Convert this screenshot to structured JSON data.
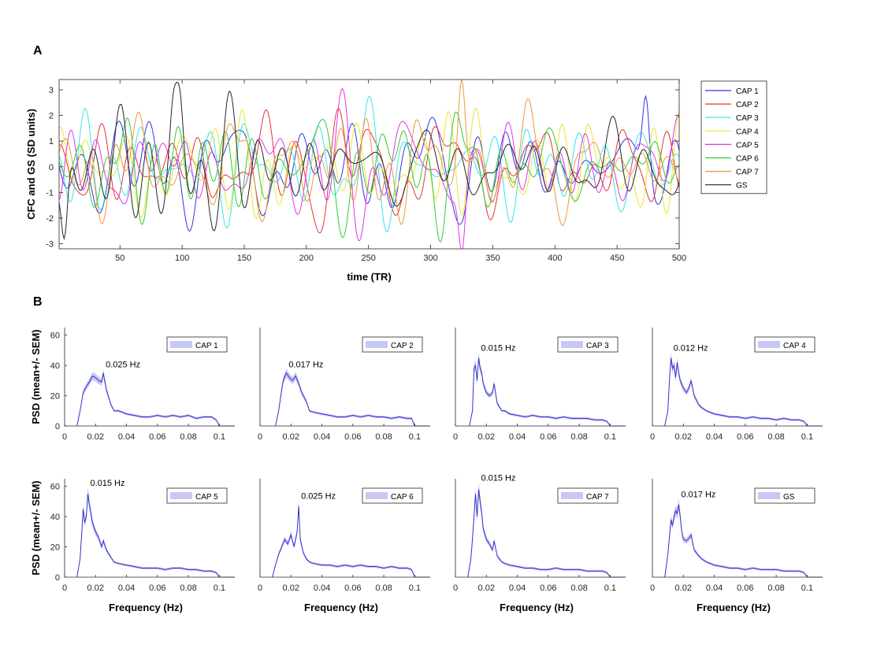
{
  "panel_a_letter": "A",
  "panel_b_letter": "B",
  "chart_data": [
    {
      "type": "line",
      "panel": "A",
      "xlabel": "time (TR)",
      "ylabel": "CFC and GS (SD units)",
      "xlim": [
        1,
        500
      ],
      "ylim": [
        -3.2,
        3.4
      ],
      "xticks": [
        50,
        100,
        150,
        200,
        250,
        300,
        350,
        400,
        450,
        500
      ],
      "yticks": [
        -3,
        -2,
        -1,
        0,
        1,
        2,
        3
      ],
      "series": [
        {
          "name": "CAP 1",
          "color": "#3333e6"
        },
        {
          "name": "CAP 2",
          "color": "#e63333"
        },
        {
          "name": "CAP 3",
          "color": "#33e6e6"
        },
        {
          "name": "CAP 4",
          "color": "#e6e633"
        },
        {
          "name": "CAP 5",
          "color": "#e633e6"
        },
        {
          "name": "CAP 6",
          "color": "#33cc33"
        },
        {
          "name": "CAP 7",
          "color": "#f0963c"
        },
        {
          "name": "GS",
          "color": "#262626"
        }
      ],
      "notable_extremes": [
        {
          "series": "GS",
          "x": 96,
          "y": 3.3
        },
        {
          "series": "CAP 7",
          "x": 325,
          "y": 3.4
        },
        {
          "series": "CAP 5",
          "x": 325,
          "y": -3.3
        },
        {
          "series": "GS",
          "x": 5,
          "y": -2.8
        },
        {
          "series": "CAP 1",
          "x": 473,
          "y": 2.75
        }
      ]
    },
    {
      "type": "area",
      "panel": "B",
      "xlabel": "Frequency (Hz)",
      "ylabel": "PSD (mean+/- SEM)",
      "xlim": [
        0,
        0.11
      ],
      "ylim": [
        0,
        65
      ],
      "xticks": [
        "0",
        "0.02",
        "0.04",
        "0.06",
        "0.08",
        "0.1"
      ],
      "top_yticks": [
        "0",
        "20",
        "40",
        "60"
      ],
      "line_color": "#3333cc",
      "band_color": "#c8c8f5",
      "spectra": [
        {
          "name": "CAP 1",
          "peak_label": "0.025 Hz",
          "peak_freq": 0.025,
          "x": [
            0.008,
            0.01,
            0.012,
            0.014,
            0.016,
            0.018,
            0.02,
            0.022,
            0.024,
            0.025,
            0.027,
            0.03,
            0.032,
            0.035,
            0.04,
            0.045,
            0.05,
            0.055,
            0.06,
            0.065,
            0.07,
            0.075,
            0.08,
            0.085,
            0.09,
            0.095,
            0.098,
            0.1
          ],
          "y": [
            0,
            10,
            22,
            26,
            29,
            33,
            32,
            30,
            29,
            35,
            24,
            14,
            10,
            10,
            8,
            7,
            6,
            6,
            7,
            6,
            7,
            6,
            7,
            5,
            6,
            6,
            4,
            0
          ]
        },
        {
          "name": "CAP 2",
          "peak_label": "0.017 Hz",
          "peak_freq": 0.017,
          "x": [
            0.01,
            0.012,
            0.014,
            0.015,
            0.017,
            0.019,
            0.021,
            0.023,
            0.025,
            0.027,
            0.03,
            0.032,
            0.035,
            0.04,
            0.045,
            0.05,
            0.055,
            0.06,
            0.065,
            0.07,
            0.075,
            0.08,
            0.085,
            0.09,
            0.095,
            0.098,
            0.1
          ],
          "y": [
            0,
            10,
            24,
            30,
            35,
            32,
            30,
            33,
            28,
            22,
            16,
            10,
            9,
            8,
            7,
            6,
            6,
            7,
            6,
            7,
            6,
            6,
            5,
            6,
            5,
            5,
            0
          ]
        },
        {
          "name": "CAP 3",
          "peak_label": "0.015 Hz",
          "peak_freq": 0.015,
          "x": [
            0.009,
            0.011,
            0.012,
            0.013,
            0.014,
            0.015,
            0.016,
            0.017,
            0.018,
            0.02,
            0.022,
            0.024,
            0.025,
            0.027,
            0.03,
            0.032,
            0.035,
            0.04,
            0.045,
            0.05,
            0.055,
            0.06,
            0.065,
            0.07,
            0.075,
            0.08,
            0.085,
            0.09,
            0.095,
            0.098,
            0.1
          ],
          "y": [
            0,
            10,
            38,
            40,
            30,
            45,
            38,
            35,
            28,
            22,
            20,
            22,
            28,
            15,
            10,
            10,
            8,
            7,
            6,
            7,
            6,
            6,
            5,
            6,
            5,
            5,
            5,
            4,
            4,
            3,
            0
          ]
        },
        {
          "name": "CAP 4",
          "peak_label": "0.012 Hz",
          "peak_freq": 0.012,
          "x": [
            0.008,
            0.01,
            0.011,
            0.012,
            0.013,
            0.014,
            0.015,
            0.016,
            0.017,
            0.018,
            0.02,
            0.022,
            0.024,
            0.025,
            0.027,
            0.03,
            0.032,
            0.035,
            0.04,
            0.045,
            0.05,
            0.055,
            0.06,
            0.065,
            0.07,
            0.075,
            0.08,
            0.085,
            0.09,
            0.095,
            0.098,
            0.1
          ],
          "y": [
            0,
            10,
            30,
            45,
            38,
            40,
            32,
            42,
            35,
            30,
            25,
            22,
            26,
            30,
            20,
            14,
            12,
            10,
            8,
            7,
            6,
            6,
            5,
            6,
            5,
            5,
            4,
            5,
            4,
            4,
            3,
            0
          ]
        },
        {
          "name": "CAP 5",
          "peak_label": "0.015 Hz",
          "peak_freq": 0.015,
          "x": [
            0.008,
            0.01,
            0.011,
            0.012,
            0.013,
            0.014,
            0.015,
            0.016,
            0.017,
            0.018,
            0.02,
            0.022,
            0.024,
            0.025,
            0.027,
            0.03,
            0.032,
            0.035,
            0.04,
            0.045,
            0.05,
            0.055,
            0.06,
            0.065,
            0.07,
            0.075,
            0.08,
            0.085,
            0.09,
            0.095,
            0.098,
            0.1
          ],
          "y": [
            0,
            12,
            28,
            45,
            36,
            40,
            55,
            48,
            42,
            36,
            30,
            26,
            20,
            24,
            18,
            13,
            10,
            9,
            8,
            7,
            6,
            6,
            6,
            5,
            6,
            6,
            5,
            5,
            4,
            4,
            3,
            0
          ]
        },
        {
          "name": "CAP 6",
          "peak_label": "0.025 Hz",
          "peak_freq": 0.025,
          "x": [
            0.008,
            0.01,
            0.012,
            0.014,
            0.016,
            0.018,
            0.02,
            0.022,
            0.024,
            0.025,
            0.026,
            0.028,
            0.03,
            0.032,
            0.035,
            0.04,
            0.045,
            0.05,
            0.055,
            0.06,
            0.065,
            0.07,
            0.075,
            0.08,
            0.085,
            0.09,
            0.095,
            0.098,
            0.1
          ],
          "y": [
            0,
            8,
            15,
            20,
            25,
            22,
            28,
            20,
            30,
            47,
            25,
            16,
            12,
            10,
            9,
            8,
            8,
            7,
            8,
            7,
            8,
            7,
            7,
            6,
            7,
            6,
            6,
            5,
            0
          ]
        },
        {
          "name": "CAP 7",
          "peak_label": "0.015 Hz",
          "peak_freq": 0.015,
          "x": [
            0.008,
            0.01,
            0.011,
            0.012,
            0.013,
            0.014,
            0.015,
            0.016,
            0.017,
            0.018,
            0.02,
            0.022,
            0.024,
            0.025,
            0.027,
            0.03,
            0.032,
            0.035,
            0.04,
            0.045,
            0.05,
            0.055,
            0.06,
            0.065,
            0.07,
            0.075,
            0.08,
            0.085,
            0.09,
            0.095,
            0.098,
            0.1
          ],
          "y": [
            0,
            12,
            25,
            40,
            55,
            40,
            58,
            50,
            42,
            32,
            25,
            22,
            18,
            24,
            14,
            10,
            9,
            8,
            7,
            6,
            6,
            5,
            5,
            6,
            5,
            5,
            5,
            4,
            4,
            4,
            3,
            0
          ]
        },
        {
          "name": "GS",
          "peak_label": "0.017 Hz",
          "peak_freq": 0.017,
          "x": [
            0.008,
            0.01,
            0.012,
            0.013,
            0.014,
            0.015,
            0.016,
            0.017,
            0.018,
            0.019,
            0.02,
            0.022,
            0.024,
            0.025,
            0.027,
            0.03,
            0.032,
            0.035,
            0.04,
            0.045,
            0.05,
            0.055,
            0.06,
            0.065,
            0.07,
            0.075,
            0.08,
            0.085,
            0.09,
            0.095,
            0.098,
            0.1
          ],
          "y": [
            0,
            15,
            38,
            34,
            40,
            44,
            42,
            48,
            40,
            30,
            25,
            24,
            26,
            28,
            18,
            14,
            12,
            10,
            8,
            7,
            6,
            6,
            5,
            6,
            5,
            5,
            5,
            4,
            4,
            4,
            3,
            0
          ]
        }
      ]
    }
  ]
}
